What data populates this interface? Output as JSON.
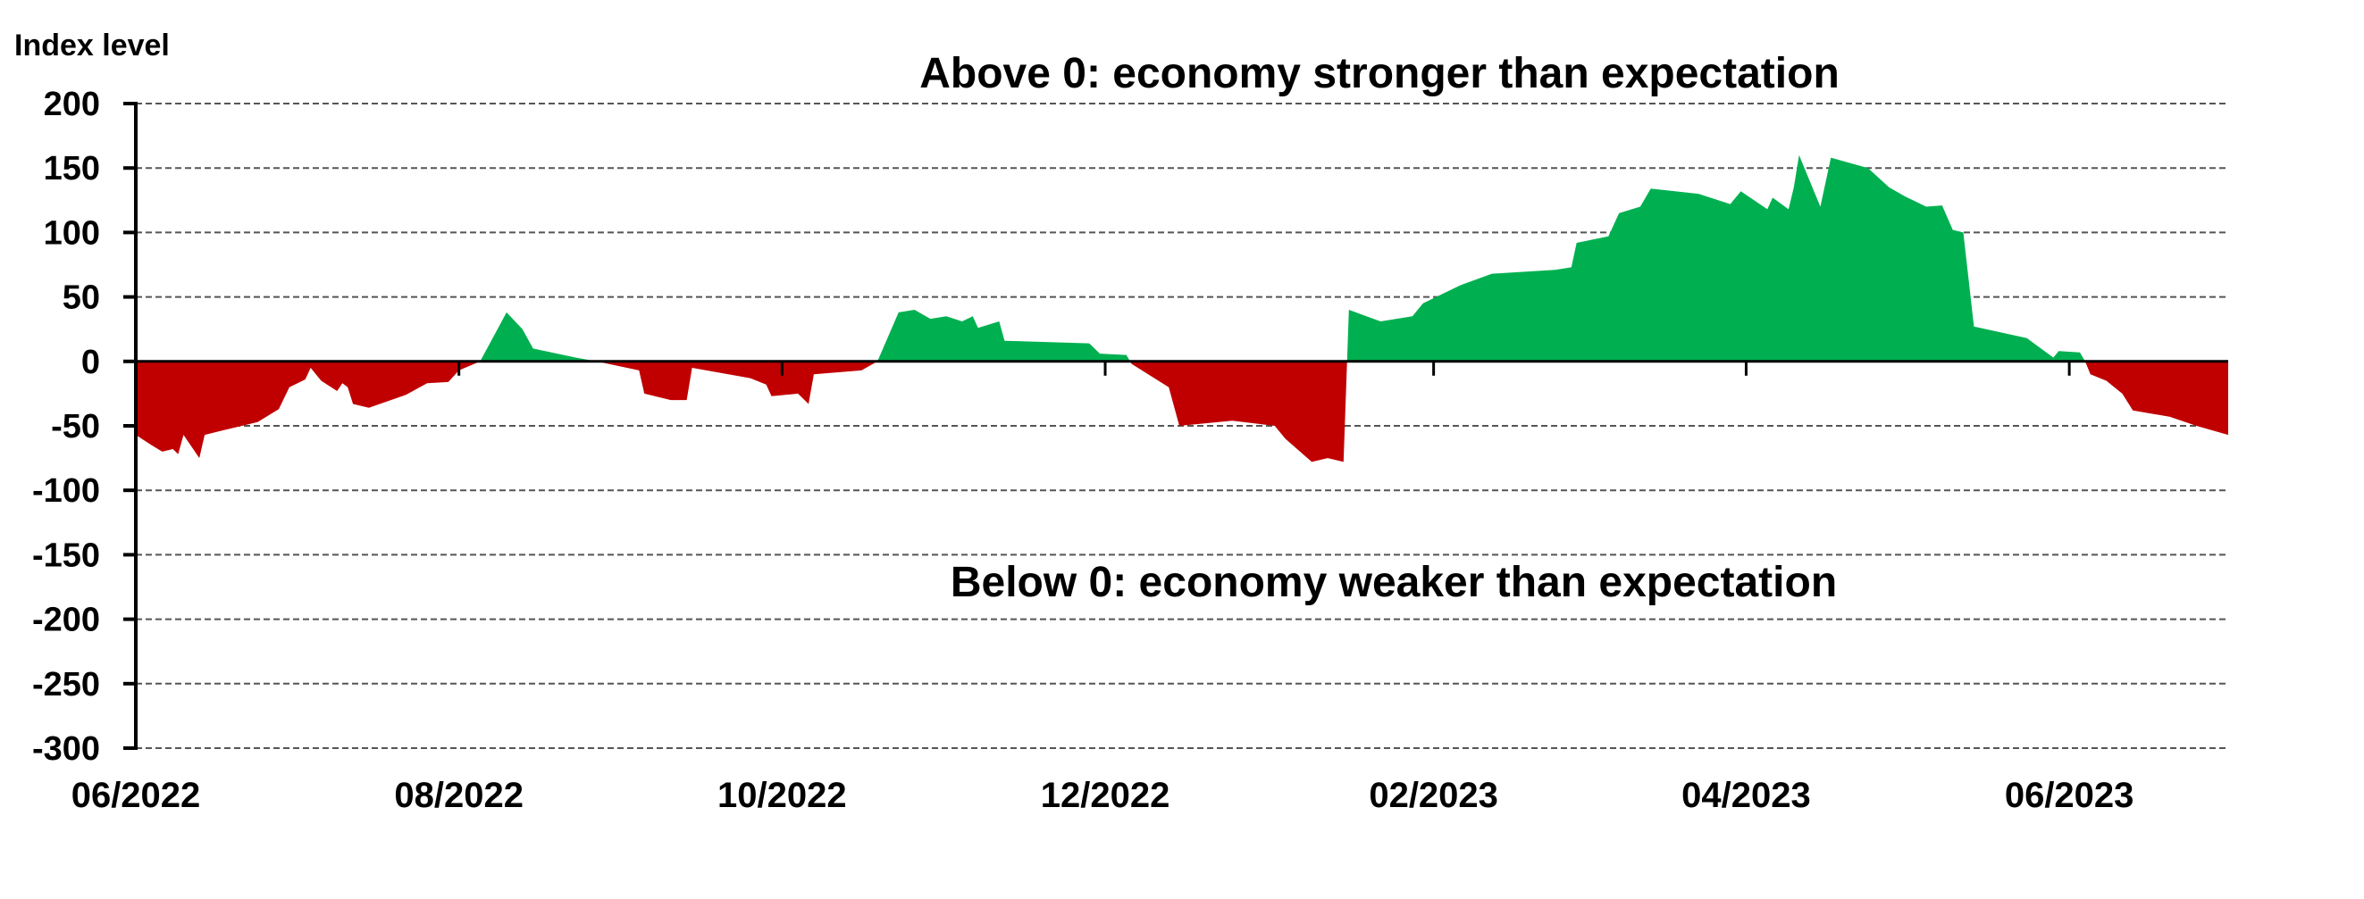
{
  "chart_data": {
    "type": "area",
    "ylabel": "Index level",
    "annotations": {
      "above": "Above 0: economy stronger than expectation",
      "below": "Below 0: economy weaker than expectation"
    },
    "ylim": [
      -300,
      200
    ],
    "yticks": [
      200,
      150,
      100,
      50,
      0,
      -50,
      -100,
      -150,
      -200,
      -250,
      -300
    ],
    "ytick_labels": [
      "200",
      "150",
      "100",
      "50",
      "0",
      "-50",
      "-100",
      "-150",
      "-200",
      "-250",
      "-300"
    ],
    "xlim": [
      "2022-06-01",
      "2023-07-01"
    ],
    "xticks": [
      "2022-06-01",
      "2022-08-01",
      "2022-10-01",
      "2022-12-01",
      "2023-02-01",
      "2023-04-01",
      "2023-06-01"
    ],
    "xtick_labels": [
      "06/2022",
      "08/2022",
      "10/2022",
      "12/2022",
      "02/2023",
      "04/2023",
      "06/2023"
    ],
    "grid": true,
    "colors": {
      "positive": "#00B050",
      "negative": "#C00000"
    },
    "series": [
      {
        "x": [
          "2022-06-01",
          "2022-06-04",
          "2022-06-06",
          "2022-06-08",
          "2022-06-09",
          "2022-06-10",
          "2022-06-13",
          "2022-06-14",
          "2022-06-18",
          "2022-06-24",
          "2022-06-28",
          "2022-06-30",
          "2022-07-03",
          "2022-07-04",
          "2022-07-06",
          "2022-07-09",
          "2022-07-10",
          "2022-07-11",
          "2022-07-12",
          "2022-07-15",
          "2022-07-22",
          "2022-07-26",
          "2022-07-30",
          "2022-08-01",
          "2022-08-05",
          "2022-08-10",
          "2022-08-13",
          "2022-08-15",
          "2022-08-23",
          "2022-08-27",
          "2022-09-04",
          "2022-09-05",
          "2022-09-10",
          "2022-09-13",
          "2022-09-14",
          "2022-09-25",
          "2022-09-28",
          "2022-09-29",
          "2022-10-04",
          "2022-10-06",
          "2022-10-07",
          "2022-10-16",
          "2022-10-19",
          "2022-10-23",
          "2022-10-26",
          "2022-10-29",
          "2022-11-01",
          "2022-11-04",
          "2022-11-06",
          "2022-11-07",
          "2022-11-11",
          "2022-11-12",
          "2022-11-28",
          "2022-11-30",
          "2022-12-05",
          "2022-12-06",
          "2022-12-13",
          "2022-12-15",
          "2022-12-25",
          "2023-01-02",
          "2023-01-04",
          "2023-01-09",
          "2023-01-12",
          "2023-01-15",
          "2023-01-16",
          "2023-01-22",
          "2023-01-28",
          "2023-01-30",
          "2023-02-06",
          "2023-02-12",
          "2023-02-24",
          "2023-02-27",
          "2023-02-28",
          "2023-03-06",
          "2023-03-08",
          "2023-03-12",
          "2023-03-14",
          "2023-03-23",
          "2023-03-29",
          "2023-03-31",
          "2023-04-05",
          "2023-04-06",
          "2023-04-09",
          "2023-04-10",
          "2023-04-11",
          "2023-04-15",
          "2023-04-17",
          "2023-04-24",
          "2023-04-28",
          "2023-05-01",
          "2023-05-05",
          "2023-05-08",
          "2023-05-10",
          "2023-05-12",
          "2023-05-14",
          "2023-05-24",
          "2023-05-29",
          "2023-05-30",
          "2023-06-03",
          "2023-06-04",
          "2023-06-05",
          "2023-06-08",
          "2023-06-11",
          "2023-06-13",
          "2023-06-20",
          "2023-06-25",
          "2023-07-01"
        ],
        "values": [
          -57,
          -65,
          -70,
          -68,
          -72,
          -57,
          -75,
          -57,
          -53,
          -47,
          -37,
          -20,
          -14,
          -5,
          -15,
          -23,
          -17,
          -20,
          -33,
          -36,
          -26,
          -17,
          -16,
          -7,
          0,
          38,
          25,
          10,
          3,
          0,
          -7,
          -25,
          -30,
          -30,
          -5,
          -13,
          -18,
          -27,
          -25,
          -33,
          -10,
          -7,
          0,
          38,
          40,
          33,
          35,
          31,
          35,
          26,
          31,
          16,
          14,
          6,
          5,
          -2,
          -20,
          -50,
          -46,
          -50,
          -60,
          -78,
          -75,
          -78,
          40,
          31,
          35,
          45,
          59,
          68,
          71,
          73,
          92,
          97,
          115,
          120,
          134,
          130,
          122,
          132,
          118,
          127,
          118,
          135,
          160,
          120,
          158,
          150,
          135,
          128,
          120,
          121,
          102,
          100,
          27,
          18,
          3,
          8,
          7,
          0,
          -10,
          -15,
          -25,
          -38,
          -43,
          -50,
          -57
        ]
      }
    ]
  }
}
